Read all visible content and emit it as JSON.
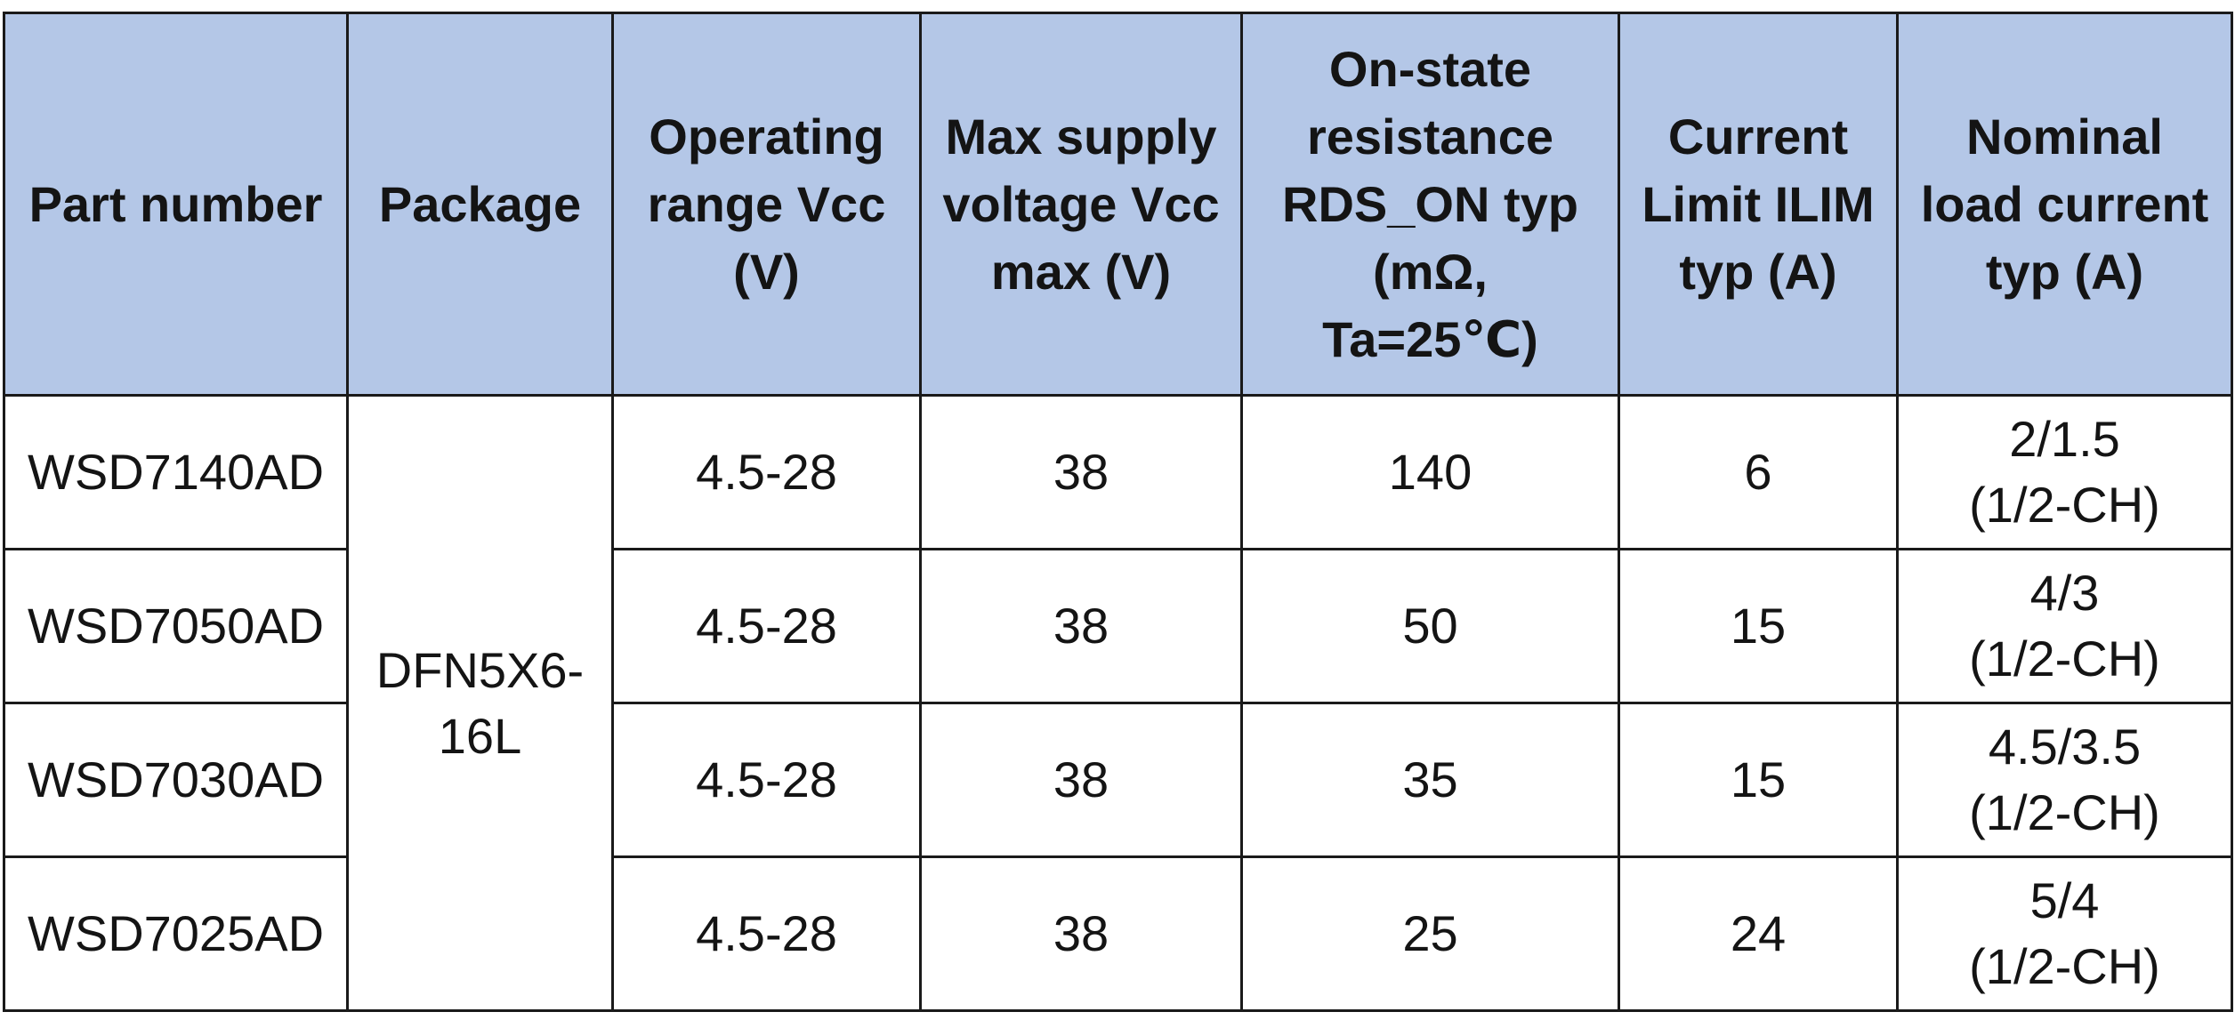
{
  "table": {
    "headers": [
      [
        "Part number"
      ],
      [
        "Package"
      ],
      [
        "Operating",
        "range Vcc",
        "(V)"
      ],
      [
        "Max supply",
        "voltage Vcc",
        "max (V)"
      ],
      [
        "On-state",
        "resistance",
        "RDS_ON typ",
        "(mΩ,",
        "Ta=25℃)"
      ],
      [
        "Current",
        "Limit ILIM",
        "typ (A)"
      ],
      [
        "Nominal",
        "load current",
        "typ (A)"
      ]
    ],
    "package": [
      "DFN5X6-",
      "16L"
    ],
    "rows": [
      {
        "part_number": "WSD7140AD",
        "operating_range": "4.5-28",
        "max_supply_voltage": "38",
        "rds_on": "140",
        "current_limit": "6",
        "nominal_load": [
          "2/1.5",
          "(1/2-CH)"
        ]
      },
      {
        "part_number": "WSD7050AD",
        "operating_range": "4.5-28",
        "max_supply_voltage": "38",
        "rds_on": "50",
        "current_limit": "15",
        "nominal_load": [
          "4/3",
          "(1/2-CH)"
        ]
      },
      {
        "part_number": "WSD7030AD",
        "operating_range": "4.5-28",
        "max_supply_voltage": "38",
        "rds_on": "35",
        "current_limit": "15",
        "nominal_load": [
          "4.5/3.5",
          "(1/2-CH)"
        ]
      },
      {
        "part_number": "WSD7025AD",
        "operating_range": "4.5-28",
        "max_supply_voltage": "38",
        "rds_on": "25",
        "current_limit": "24",
        "nominal_load": [
          "5/4",
          "(1/2-CH)"
        ]
      }
    ],
    "colors": {
      "header_background": "#b4c7e7",
      "border": "#1a1a1a",
      "body_background": "#ffffff"
    }
  }
}
